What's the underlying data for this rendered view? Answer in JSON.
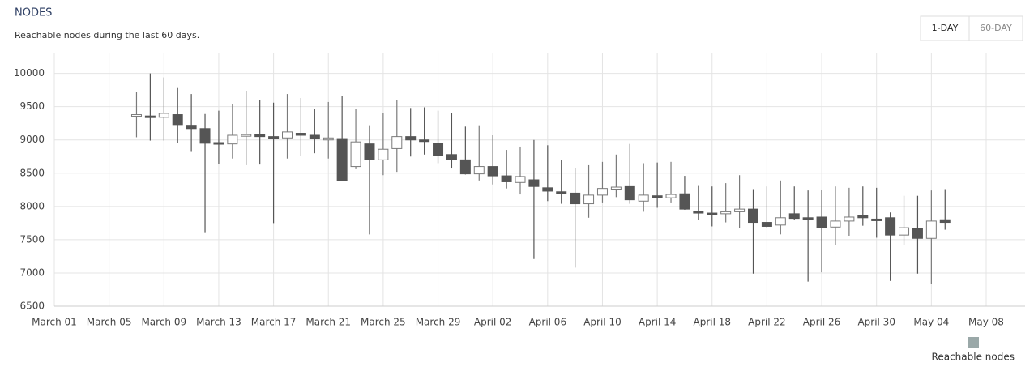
{
  "chart_data": {
    "type": "candlestick",
    "title": "NODES",
    "subtitle": "Reachable nodes during the last 60 days.",
    "buttons": [
      "1-DAY",
      "60-DAY"
    ],
    "selected_button": "1-DAY",
    "ylim": [
      6500,
      10300
    ],
    "yticks": [
      6500,
      7000,
      7500,
      8000,
      8500,
      9000,
      9500,
      10000
    ],
    "xticks": [
      "March 01",
      "March 05",
      "March 09",
      "March 13",
      "March 17",
      "March 21",
      "March 25",
      "March 29",
      "April 02",
      "April 06",
      "April 10",
      "April 14",
      "April 18",
      "April 22",
      "April 26",
      "April 30",
      "May 04",
      "May 08"
    ],
    "grid": true,
    "legend": "bottom-right",
    "x": [
      "March 07",
      "March 08",
      "March 09",
      "March 10",
      "March 11",
      "March 12",
      "March 13",
      "March 14",
      "March 15",
      "March 16",
      "March 17",
      "March 18",
      "March 19",
      "March 20",
      "March 21",
      "March 22",
      "March 23",
      "March 24",
      "March 25",
      "March 26",
      "March 27",
      "March 28",
      "March 29",
      "March 30",
      "March 31",
      "April 01",
      "April 02",
      "April 03",
      "April 04",
      "April 05",
      "April 06",
      "April 07",
      "April 08",
      "April 09",
      "April 10",
      "April 11",
      "April 12",
      "April 13",
      "April 14",
      "April 15",
      "April 16",
      "April 17",
      "April 18",
      "April 19",
      "April 20",
      "April 21",
      "April 22",
      "April 23",
      "April 24",
      "April 25",
      "April 26",
      "April 27",
      "April 28",
      "April 29",
      "April 30",
      "May 01",
      "May 02",
      "May 03",
      "May 04",
      "May 05"
    ],
    "series": [
      {
        "name": "Reachable nodes",
        "color": "#9aa8a8",
        "up_color": "#ffffff",
        "down_color": "#555555",
        "edge_color": "#7a7a7a",
        "open": [
          9370,
          9360,
          9340,
          9380,
          9220,
          9170,
          8960,
          8940,
          9070,
          9080,
          9050,
          9030,
          9100,
          9070,
          9000,
          9020,
          8600,
          8940,
          8700,
          8870,
          9050,
          9000,
          8950,
          8780,
          8700,
          8490,
          8600,
          8460,
          8360,
          8400,
          8280,
          8220,
          8200,
          8040,
          8170,
          8260,
          8310,
          8080,
          8160,
          8130,
          8190,
          7930,
          7900,
          7890,
          7920,
          7960,
          7760,
          7720,
          7890,
          7830,
          7840,
          7690,
          7780,
          7860,
          7810,
          7830,
          7570,
          7670,
          7520,
          7800
        ],
        "high": [
          9720,
          10000,
          9940,
          9780,
          9690,
          9390,
          9440,
          9540,
          9740,
          9600,
          9560,
          9690,
          9630,
          9460,
          9570,
          9660,
          9470,
          9220,
          9400,
          9600,
          9480,
          9490,
          9440,
          9400,
          9200,
          9220,
          9070,
          8850,
          8900,
          9000,
          8920,
          8700,
          8580,
          8620,
          8670,
          8780,
          8940,
          8650,
          8660,
          8670,
          8460,
          8320,
          8300,
          8350,
          8470,
          8260,
          8300,
          8390,
          8300,
          8240,
          8250,
          8300,
          8280,
          8300,
          8280,
          7910,
          8160,
          8160,
          8240,
          8260
        ],
        "low": [
          9040,
          8990,
          8990,
          8960,
          8820,
          7600,
          8640,
          8720,
          8620,
          8630,
          7750,
          8720,
          8760,
          8800,
          8720,
          8380,
          8560,
          7580,
          8470,
          8520,
          8750,
          8780,
          8650,
          8570,
          8480,
          8390,
          8330,
          8270,
          8180,
          7210,
          8080,
          8040,
          7080,
          7830,
          8060,
          8140,
          8040,
          7920,
          7980,
          8060,
          7950,
          7800,
          7700,
          7760,
          7680,
          6990,
          7680,
          7580,
          7800,
          6870,
          7010,
          7420,
          7560,
          7710,
          7530,
          6880,
          7420,
          6990,
          6830,
          7650
        ],
        "close": [
          9380,
          9350,
          9400,
          9230,
          9170,
          8950,
          8940,
          9070,
          9080,
          9050,
          9020,
          9120,
          9070,
          9020,
          9030,
          8390,
          8970,
          8710,
          8860,
          9050,
          9000,
          8980,
          8770,
          8700,
          8490,
          8600,
          8460,
          8370,
          8450,
          8300,
          8230,
          8190,
          8040,
          8170,
          8270,
          8290,
          8100,
          8170,
          8130,
          8180,
          7960,
          7900,
          7880,
          7920,
          7960,
          7760,
          7700,
          7830,
          7820,
          7810,
          7680,
          7780,
          7840,
          7830,
          7800,
          7570,
          7680,
          7520,
          7780,
          7760
        ]
      }
    ]
  }
}
